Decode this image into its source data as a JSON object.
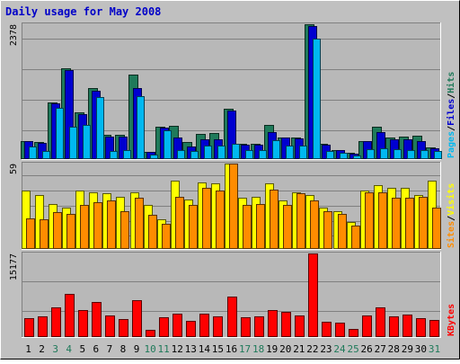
{
  "chart_data": [
    {
      "type": "bar",
      "title": "Daily usage for May 2008",
      "categories": [
        "1",
        "2",
        "3",
        "4",
        "5",
        "6",
        "7",
        "8",
        "9",
        "10",
        "11",
        "12",
        "13",
        "14",
        "15",
        "16",
        "17",
        "18",
        "19",
        "20",
        "21",
        "22",
        "23",
        "24",
        "25",
        "26",
        "27",
        "28",
        "29",
        "30",
        "31"
      ],
      "weekend_days": [
        "3",
        "4",
        "10",
        "11",
        "17",
        "18",
        "24",
        "25",
        "31"
      ],
      "ylabel_parts": [
        "Pages",
        "/",
        "Files",
        "/",
        "Hits"
      ],
      "y_max_label": "2378",
      "ylim": [
        0,
        2378
      ],
      "series": [
        {
          "name": "Hits",
          "color": "#1f7a5a",
          "values": [
            310,
            280,
            990,
            1600,
            820,
            1250,
            410,
            420,
            1480,
            110,
            560,
            570,
            280,
            430,
            440,
            880,
            250,
            250,
            590,
            370,
            360,
            2378,
            250,
            150,
            90,
            310,
            560,
            360,
            390,
            400,
            190
          ]
        },
        {
          "name": "Files",
          "color": "#0000d0",
          "values": [
            300,
            270,
            970,
            1560,
            780,
            1200,
            390,
            380,
            1240,
            110,
            540,
            370,
            210,
            340,
            340,
            840,
            240,
            240,
            460,
            360,
            350,
            2340,
            240,
            150,
            80,
            300,
            460,
            340,
            330,
            310,
            180
          ]
        },
        {
          "name": "Pages",
          "color": "#00b8f0",
          "values": [
            200,
            130,
            900,
            560,
            590,
            1080,
            130,
            140,
            1100,
            60,
            490,
            150,
            120,
            230,
            220,
            250,
            150,
            140,
            320,
            220,
            220,
            2130,
            130,
            100,
            50,
            160,
            170,
            160,
            150,
            150,
            120
          ]
        }
      ]
    },
    {
      "type": "bar",
      "categories": [
        "1",
        "2",
        "3",
        "4",
        "5",
        "6",
        "7",
        "8",
        "9",
        "10",
        "11",
        "12",
        "13",
        "14",
        "15",
        "16",
        "17",
        "18",
        "19",
        "20",
        "21",
        "22",
        "23",
        "24",
        "25",
        "26",
        "27",
        "28",
        "29",
        "30",
        "31"
      ],
      "ylabel_parts": [
        "Sites",
        "/",
        "Visits"
      ],
      "y_max_label": "59",
      "ylim": [
        0,
        59
      ],
      "series": [
        {
          "name": "Visits",
          "color": "#ffff00",
          "values": [
            40,
            37,
            31,
            28,
            40,
            39,
            38,
            36,
            39,
            30,
            20,
            47,
            34,
            46,
            45,
            59,
            35,
            36,
            45,
            33,
            39,
            37,
            28,
            26,
            18,
            40,
            44,
            42,
            42,
            37,
            47
          ]
        },
        {
          "name": "Sites",
          "color": "#ff8c00",
          "values": [
            21,
            20,
            25,
            24,
            30,
            32,
            33,
            26,
            35,
            23,
            17,
            36,
            30,
            42,
            40,
            59,
            30,
            31,
            41,
            30,
            38,
            33,
            26,
            24,
            16,
            39,
            39,
            35,
            35,
            36,
            28
          ]
        }
      ]
    },
    {
      "type": "bar",
      "categories": [
        "1",
        "2",
        "3",
        "4",
        "5",
        "6",
        "7",
        "8",
        "9",
        "10",
        "11",
        "12",
        "13",
        "14",
        "15",
        "16",
        "17",
        "18",
        "19",
        "20",
        "21",
        "22",
        "23",
        "24",
        "25",
        "26",
        "27",
        "28",
        "29",
        "30",
        "31"
      ],
      "ylabel_parts": [
        "KBytes"
      ],
      "y_max_label": "15177",
      "ylim": [
        0,
        15177
      ],
      "series": [
        {
          "name": "KBytes",
          "color": "#ff0000",
          "values": [
            3300,
            3700,
            5300,
            7700,
            4800,
            6300,
            3800,
            3200,
            6600,
            1200,
            3500,
            4100,
            2800,
            4200,
            3600,
            7300,
            3500,
            3700,
            4800,
            4500,
            3800,
            15177,
            2700,
            2400,
            1400,
            3800,
            5300,
            3600,
            4000,
            3300,
            2900
          ]
        }
      ]
    }
  ],
  "label_colors": {
    "Pages": "#00b8f0",
    "Files": "#0000d0",
    "Hits": "#1f7a5a",
    "Sites": "#ff8c00",
    "Visits": "#ffff00",
    "KBytes": "#ff0000",
    "separator": "#000000",
    "title": "#0000c8",
    "weekend": "#1f7a5a",
    "weekday": "#000000"
  }
}
